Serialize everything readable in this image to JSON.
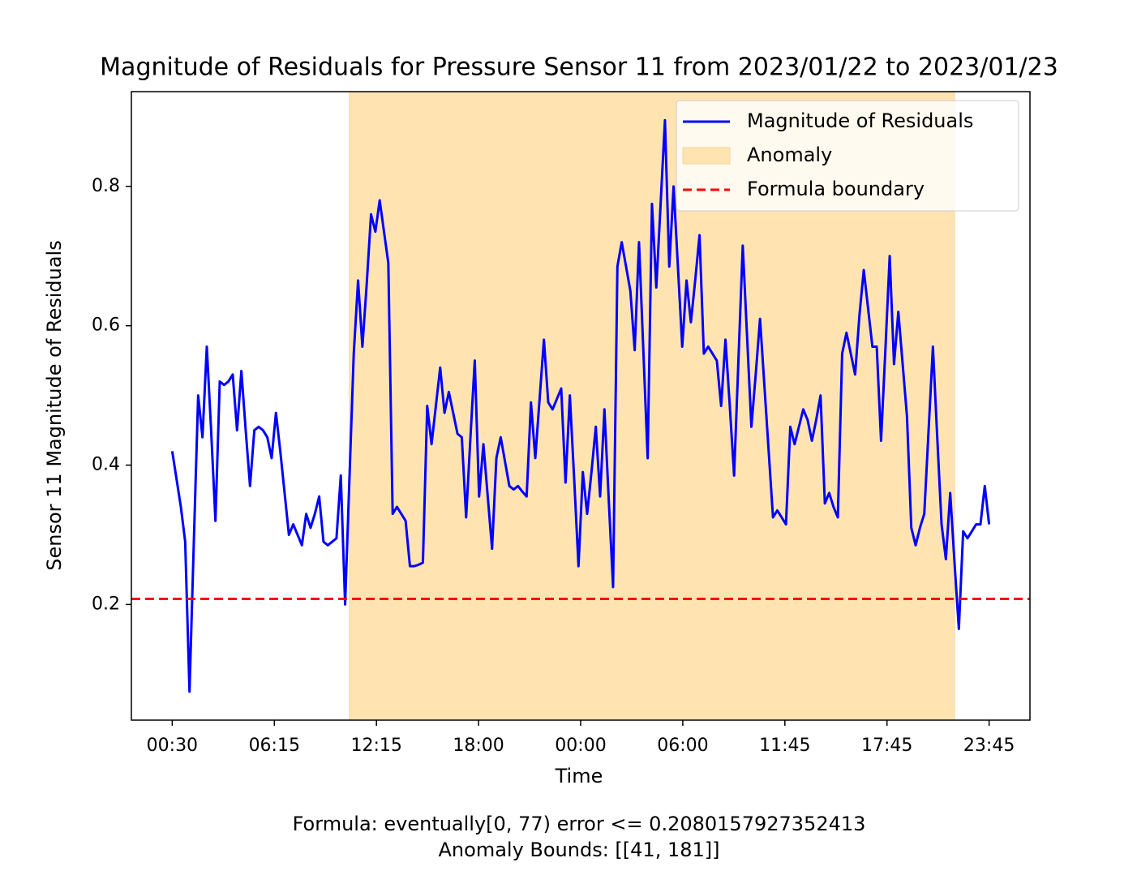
{
  "chart_data": {
    "type": "line",
    "title": "Magnitude of Residuals for Pressure Sensor 11 from 2023/01/22 to 2023/01/23",
    "xlabel": "Time",
    "ylabel": "Sensor 11 Magnitude of Residuals",
    "notes": [
      "Formula: eventually[0, 77) error <= 0.2080157927352413",
      "Anomaly Bounds: [[41, 181]]"
    ],
    "x": [
      0,
      1,
      2,
      3,
      4,
      5,
      6,
      7,
      8,
      9,
      10,
      11,
      12,
      13,
      14,
      15,
      16,
      17,
      18,
      19,
      20,
      21,
      22,
      23,
      24,
      25,
      26,
      27,
      28,
      29,
      30,
      31,
      32,
      33,
      34,
      35,
      36,
      37,
      38,
      39,
      40,
      41,
      42,
      43,
      44,
      45,
      46,
      47,
      48,
      49,
      50,
      51,
      52,
      53,
      54,
      55,
      56,
      57,
      58,
      59,
      60,
      61,
      62,
      63,
      64,
      65,
      66,
      67,
      68,
      69,
      70,
      71,
      72,
      73,
      74,
      75,
      76,
      77,
      78,
      79,
      80,
      81,
      82,
      83,
      84,
      85,
      86,
      87,
      88,
      89,
      90,
      91,
      92,
      93,
      94,
      95,
      96,
      97,
      98,
      99,
      100,
      101,
      102,
      103,
      104,
      105,
      106,
      107,
      108,
      109,
      110,
      111,
      112,
      113,
      114,
      115,
      116,
      117,
      118,
      119,
      120,
      121,
      122,
      123,
      124,
      125,
      126,
      127,
      128,
      129,
      130,
      131,
      132,
      133,
      134,
      135,
      136,
      137,
      138,
      139,
      140,
      141,
      142,
      143,
      144,
      145,
      146,
      147,
      148,
      149,
      150,
      151,
      152,
      153,
      154,
      155,
      156,
      157,
      158,
      159,
      160,
      161,
      162,
      163,
      164,
      165,
      166,
      167,
      168,
      169,
      170,
      171,
      172,
      173,
      174,
      175,
      176,
      177,
      178,
      179,
      180,
      181,
      182,
      183,
      184,
      185,
      186,
      187,
      188,
      189
    ],
    "series": [
      {
        "name": "Magnitude of Residuals",
        "color": "#0000ff",
        "values": [
          0.42,
          0.38,
          0.34,
          0.29,
          0.075,
          0.29,
          0.5,
          0.44,
          0.57,
          0.45,
          0.32,
          0.52,
          0.515,
          0.52,
          0.53,
          0.45,
          0.535,
          0.45,
          0.37,
          0.45,
          0.455,
          0.45,
          0.44,
          0.41,
          0.475,
          0.42,
          0.36,
          0.3,
          0.315,
          0.3,
          0.285,
          0.33,
          0.31,
          0.33,
          0.355,
          0.29,
          0.285,
          0.29,
          0.295,
          0.385,
          0.2,
          0.38,
          0.56,
          0.665,
          0.57,
          0.66,
          0.76,
          0.735,
          0.78,
          0.735,
          0.69,
          0.33,
          0.34,
          0.33,
          0.32,
          0.255,
          0.255,
          0.257,
          0.26,
          0.485,
          0.43,
          0.485,
          0.54,
          0.475,
          0.505,
          0.475,
          0.445,
          0.44,
          0.325,
          0.44,
          0.55,
          0.355,
          0.43,
          0.355,
          0.28,
          0.41,
          0.44,
          0.405,
          0.37,
          0.365,
          0.37,
          0.362,
          0.355,
          0.49,
          0.41,
          0.495,
          0.58,
          0.49,
          0.48,
          0.495,
          0.51,
          0.375,
          0.5,
          0.38,
          0.255,
          0.39,
          0.33,
          0.39,
          0.455,
          0.355,
          0.48,
          0.35,
          0.225,
          0.685,
          0.72,
          0.685,
          0.65,
          0.565,
          0.72,
          0.565,
          0.41,
          0.775,
          0.655,
          0.775,
          0.895,
          0.685,
          0.8,
          0.685,
          0.57,
          0.665,
          0.605,
          0.665,
          0.73,
          0.56,
          0.57,
          0.56,
          0.55,
          0.485,
          0.58,
          0.485,
          0.385,
          0.55,
          0.715,
          0.585,
          0.455,
          0.53,
          0.61,
          0.515,
          0.42,
          0.325,
          0.335,
          0.325,
          0.315,
          0.455,
          0.43,
          0.455,
          0.48,
          0.465,
          0.435,
          0.465,
          0.5,
          0.345,
          0.36,
          0.34,
          0.325,
          0.56,
          0.59,
          0.56,
          0.53,
          0.615,
          0.68,
          0.625,
          0.57,
          0.57,
          0.435,
          0.565,
          0.7,
          0.545,
          0.62,
          0.545,
          0.47,
          0.31,
          0.285,
          0.31,
          0.33,
          0.45,
          0.57,
          0.44,
          0.315,
          0.265,
          0.36,
          0.26,
          0.165,
          0.305,
          0.295,
          0.305,
          0.315,
          0.315,
          0.37,
          0.315
        ]
      }
    ],
    "anomaly": {
      "name": "Anomaly",
      "start": 41,
      "end": 181,
      "color": "#ffe4b2"
    },
    "boundary": {
      "name": "Formula boundary",
      "value": 0.2080157927352413,
      "color": "#ff0000"
    },
    "xlim": [
      -9.45,
      198.45
    ],
    "ylim": [
      0.034,
      0.936
    ],
    "xticks": [
      {
        "value": 0,
        "label": "00:30"
      },
      {
        "value": 23.625,
        "label": "06:15"
      },
      {
        "value": 47.25,
        "label": "12:15"
      },
      {
        "value": 70.875,
        "label": "18:00"
      },
      {
        "value": 94.5,
        "label": "00:00"
      },
      {
        "value": 118.125,
        "label": "06:00"
      },
      {
        "value": 141.75,
        "label": "11:45"
      },
      {
        "value": 165.375,
        "label": "17:45"
      },
      {
        "value": 189,
        "label": "23:45"
      }
    ],
    "yticks": [
      0.2,
      0.4,
      0.6,
      0.8
    ],
    "grid": false,
    "legend": "upper right"
  }
}
